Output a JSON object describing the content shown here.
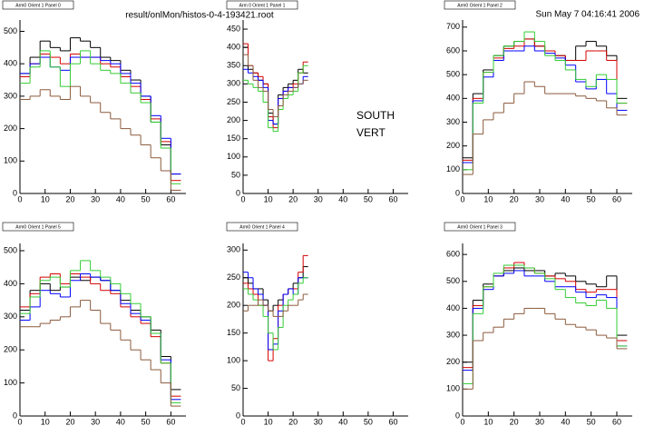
{
  "header": {
    "file": "result/onlMon/histos-0-4-193421.root",
    "date": "Sun May  7 04:16:41 2006",
    "line1": "SOUTH",
    "line2": "VERT"
  },
  "chart_data": [
    {
      "type": "histogram",
      "title": "Arm0 Orient 1 Panel 0",
      "bins": [
        0,
        4,
        8,
        12,
        16,
        20,
        24,
        28,
        32,
        36,
        40,
        44,
        48,
        52,
        56,
        60,
        64
      ],
      "xlim": [
        0,
        66
      ],
      "xticks": [
        0,
        10,
        20,
        30,
        40,
        50,
        60
      ],
      "ylim": [
        0,
        535
      ],
      "yticks": [
        0,
        100,
        200,
        300,
        400,
        500
      ],
      "series": [
        {
          "color": "#000000",
          "values": [
            370,
            420,
            470,
            450,
            440,
            480,
            470,
            450,
            420,
            410,
            380,
            350,
            300,
            220,
            150,
            60
          ]
        },
        {
          "color": "#d40000",
          "values": [
            360,
            400,
            430,
            420,
            400,
            430,
            420,
            420,
            400,
            390,
            360,
            330,
            290,
            230,
            160,
            40
          ]
        },
        {
          "color": "#0000ff",
          "values": [
            370,
            400,
            420,
            390,
            380,
            420,
            420,
            420,
            410,
            400,
            370,
            340,
            300,
            240,
            170,
            60
          ]
        },
        {
          "color": "#33cc33",
          "values": [
            340,
            390,
            440,
            390,
            330,
            400,
            440,
            400,
            380,
            370,
            340,
            310,
            280,
            220,
            140,
            30
          ]
        },
        {
          "color": "#8b5a3c",
          "values": [
            290,
            300,
            320,
            300,
            290,
            330,
            300,
            280,
            250,
            230,
            200,
            180,
            150,
            110,
            70,
            10
          ]
        }
      ]
    },
    {
      "type": "histogram",
      "title": "Arm 0 Orient 1 Panel 1",
      "bins": [
        0,
        2,
        4,
        6,
        8,
        10,
        12,
        14,
        16,
        18,
        20,
        22,
        24,
        26
      ],
      "xlim": [
        0,
        66
      ],
      "xticks": [
        0,
        10,
        20,
        30,
        40,
        50,
        60
      ],
      "ylim": [
        0,
        475
      ],
      "yticks": [
        0,
        50,
        100,
        150,
        200,
        250,
        300,
        350,
        400,
        450
      ],
      "series": [
        {
          "color": "#000000",
          "values": [
            400,
            340,
            330,
            310,
            300,
            220,
            190,
            270,
            290,
            300,
            310,
            340,
            330
          ]
        },
        {
          "color": "#d40000",
          "values": [
            410,
            350,
            330,
            320,
            300,
            210,
            180,
            260,
            280,
            290,
            300,
            330,
            360
          ]
        },
        {
          "color": "#0000ff",
          "values": [
            340,
            330,
            320,
            310,
            290,
            200,
            190,
            260,
            280,
            290,
            290,
            300,
            320
          ]
        },
        {
          "color": "#33cc33",
          "values": [
            310,
            300,
            290,
            280,
            250,
            180,
            170,
            230,
            260,
            270,
            280,
            330,
            350
          ]
        },
        {
          "color": "#8b5a3c",
          "values": [
            380,
            350,
            310,
            290,
            280,
            230,
            210,
            240,
            270,
            280,
            290,
            300,
            310
          ]
        }
      ]
    },
    {
      "type": "histogram",
      "title": "Arm0 Orient 1 Panel 2",
      "bins": [
        0,
        4,
        8,
        12,
        16,
        20,
        24,
        28,
        32,
        36,
        40,
        44,
        48,
        52,
        56,
        60,
        64
      ],
      "xlim": [
        0,
        66
      ],
      "xticks": [
        0,
        10,
        20,
        30,
        40,
        50,
        60
      ],
      "ylim": [
        0,
        730
      ],
      "yticks": [
        0,
        100,
        200,
        300,
        400,
        500,
        600,
        700
      ],
      "series": [
        {
          "color": "#000000",
          "values": [
            150,
            420,
            520,
            580,
            620,
            640,
            650,
            620,
            600,
            580,
            560,
            620,
            640,
            620,
            580,
            400
          ]
        },
        {
          "color": "#d40000",
          "values": [
            140,
            400,
            510,
            570,
            610,
            620,
            650,
            620,
            600,
            580,
            560,
            560,
            600,
            600,
            560,
            380
          ]
        },
        {
          "color": "#0000ff",
          "values": [
            130,
            390,
            490,
            560,
            600,
            600,
            620,
            600,
            590,
            570,
            540,
            470,
            440,
            480,
            420,
            350
          ]
        },
        {
          "color": "#33cc33",
          "values": [
            100,
            380,
            510,
            580,
            620,
            640,
            680,
            640,
            580,
            560,
            520,
            480,
            450,
            500,
            480,
            380
          ]
        },
        {
          "color": "#8b5a3c",
          "values": [
            80,
            250,
            310,
            340,
            380,
            420,
            470,
            450,
            420,
            420,
            420,
            410,
            400,
            390,
            360,
            330
          ]
        }
      ]
    },
    {
      "type": "histogram",
      "title": "Arm0 Orient 1 Panel 5",
      "bins": [
        0,
        4,
        8,
        12,
        16,
        20,
        24,
        28,
        32,
        36,
        40,
        44,
        48,
        52,
        56,
        60,
        64
      ],
      "xlim": [
        0,
        66
      ],
      "xticks": [
        0,
        10,
        20,
        30,
        40,
        50,
        60
      ],
      "ylim": [
        0,
        522
      ],
      "yticks": [
        0,
        100,
        200,
        300,
        400,
        500
      ],
      "series": [
        {
          "color": "#000000",
          "values": [
            320,
            380,
            400,
            380,
            390,
            420,
            410,
            420,
            410,
            380,
            350,
            320,
            300,
            260,
            180,
            80
          ]
        },
        {
          "color": "#d40000",
          "values": [
            330,
            370,
            420,
            430,
            400,
            430,
            420,
            400,
            380,
            370,
            330,
            300,
            280,
            240,
            160,
            60
          ]
        },
        {
          "color": "#0000ff",
          "values": [
            290,
            330,
            380,
            370,
            360,
            410,
            430,
            420,
            410,
            380,
            340,
            310,
            290,
            250,
            170,
            50
          ]
        },
        {
          "color": "#33cc33",
          "values": [
            310,
            360,
            410,
            420,
            390,
            440,
            470,
            440,
            420,
            400,
            370,
            340,
            300,
            250,
            160,
            40
          ]
        },
        {
          "color": "#8b5a3c",
          "values": [
            270,
            270,
            280,
            290,
            300,
            330,
            350,
            320,
            280,
            260,
            230,
            200,
            170,
            140,
            100,
            30
          ]
        }
      ]
    },
    {
      "type": "histogram",
      "title": "Arm0 Orient 1 Panel 4",
      "bins": [
        0,
        2,
        4,
        6,
        8,
        10,
        12,
        14,
        16,
        18,
        20,
        22,
        24,
        26
      ],
      "xlim": [
        0,
        66
      ],
      "xticks": [
        0,
        10,
        20,
        30,
        40,
        50,
        60
      ],
      "ylim": [
        0,
        312
      ],
      "yticks": [
        0,
        50,
        100,
        150,
        200,
        250,
        300
      ],
      "series": [
        {
          "color": "#000000",
          "values": [
            250,
            240,
            230,
            230,
            210,
            190,
            200,
            210,
            220,
            230,
            240,
            250,
            270
          ]
        },
        {
          "color": "#d40000",
          "values": [
            240,
            230,
            220,
            200,
            200,
            100,
            140,
            200,
            220,
            230,
            230,
            260,
            290
          ]
        },
        {
          "color": "#0000ff",
          "values": [
            260,
            250,
            230,
            220,
            200,
            120,
            130,
            190,
            220,
            230,
            220,
            250,
            250
          ]
        },
        {
          "color": "#33cc33",
          "values": [
            230,
            220,
            210,
            200,
            180,
            150,
            120,
            160,
            200,
            210,
            220,
            240,
            250
          ]
        },
        {
          "color": "#8b5a3c",
          "values": [
            190,
            200,
            200,
            210,
            200,
            190,
            180,
            180,
            190,
            200,
            200,
            210,
            220
          ]
        }
      ]
    },
    {
      "type": "histogram",
      "title": "Arm0 Orient 1 Panel 3",
      "bins": [
        0,
        4,
        8,
        12,
        16,
        20,
        24,
        28,
        32,
        36,
        40,
        44,
        48,
        52,
        56,
        60,
        64
      ],
      "xlim": [
        0,
        66
      ],
      "xticks": [
        0,
        10,
        20,
        30,
        40,
        50,
        60
      ],
      "ylim": [
        0,
        641
      ],
      "yticks": [
        0,
        100,
        200,
        300,
        400,
        500,
        600
      ],
      "series": [
        {
          "color": "#000000",
          "values": [
            200,
            430,
            490,
            520,
            540,
            550,
            540,
            540,
            520,
            530,
            520,
            500,
            490,
            480,
            520,
            300
          ]
        },
        {
          "color": "#d40000",
          "values": [
            180,
            410,
            480,
            520,
            550,
            570,
            550,
            530,
            520,
            510,
            500,
            470,
            460,
            470,
            470,
            280
          ]
        },
        {
          "color": "#0000ff",
          "values": [
            170,
            400,
            470,
            520,
            530,
            540,
            520,
            520,
            500,
            480,
            480,
            460,
            440,
            450,
            440,
            260
          ]
        },
        {
          "color": "#33cc33",
          "values": [
            120,
            380,
            480,
            530,
            560,
            560,
            550,
            530,
            510,
            470,
            440,
            420,
            410,
            430,
            400,
            260
          ]
        },
        {
          "color": "#8b5a3c",
          "values": [
            100,
            280,
            310,
            330,
            360,
            380,
            400,
            400,
            380,
            360,
            340,
            330,
            320,
            300,
            290,
            250
          ]
        }
      ]
    }
  ]
}
